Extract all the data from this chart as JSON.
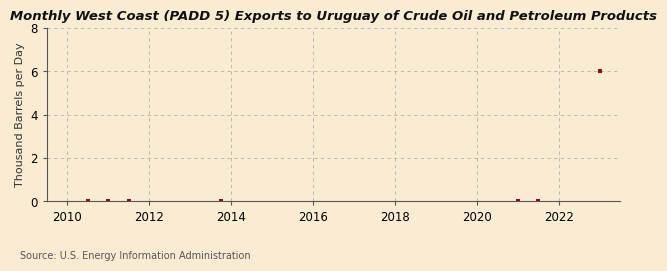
{
  "title": "Monthly West Coast (PADD 5) Exports to Uruguay of Crude Oil and Petroleum Products",
  "ylabel": "Thousand Barrels per Day",
  "source": "Source: U.S. Energy Information Administration",
  "background_color": "#faecd2",
  "plot_background_color": "#faecd2",
  "grid_color": "#aaaaaa",
  "marker_color": "#8b1010",
  "xlim": [
    2009.5,
    2023.5
  ],
  "ylim": [
    0,
    8
  ],
  "yticks": [
    0,
    2,
    4,
    6,
    8
  ],
  "xticks": [
    2010,
    2012,
    2014,
    2016,
    2018,
    2020,
    2022
  ],
  "data_x": [
    2010.5,
    2011.0,
    2011.5,
    2013.75,
    2021.0,
    2021.5,
    2023.0
  ],
  "data_y": [
    0.0,
    0.0,
    0.0,
    0.0,
    0.0,
    0.0,
    6.0
  ]
}
